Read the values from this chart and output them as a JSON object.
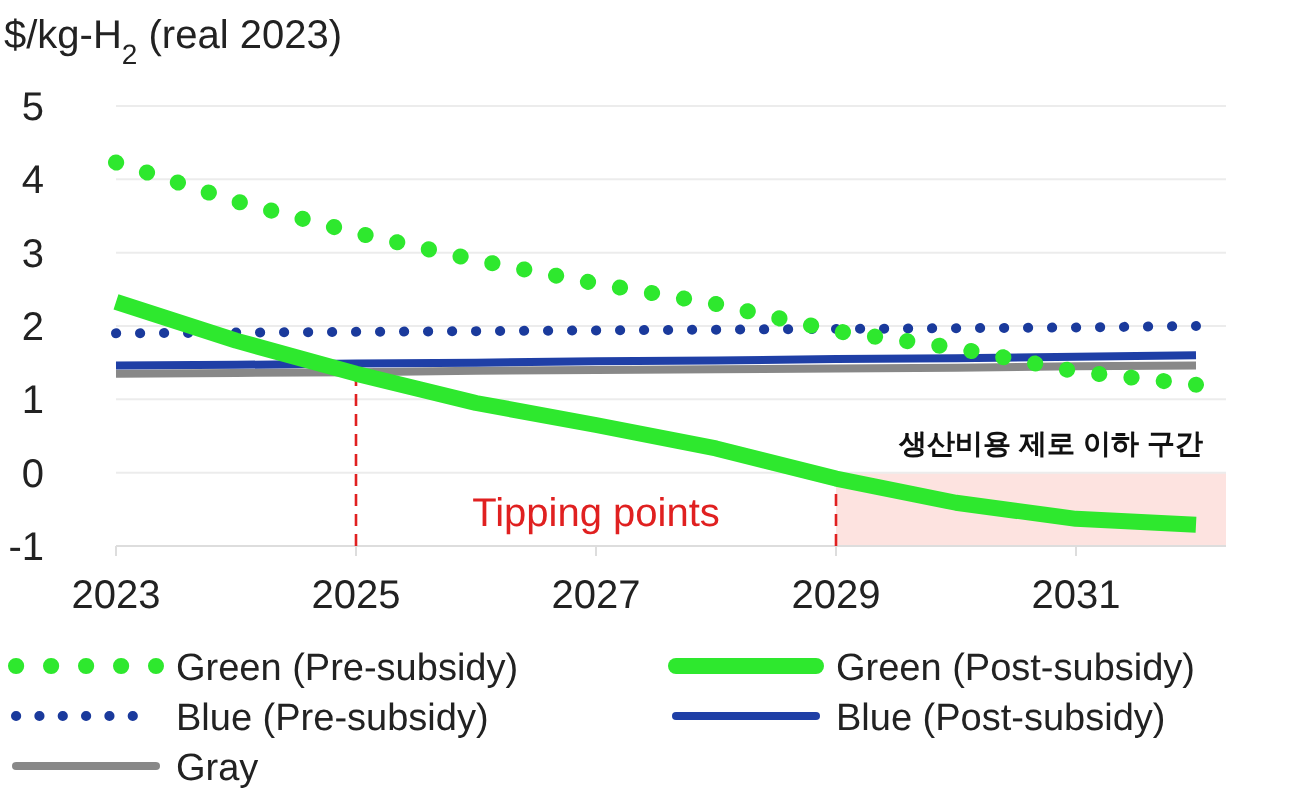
{
  "chart_data": {
    "type": "line",
    "ylabel": "$/kg-H$_{2}$ (real 2023)",
    "x": [
      2023,
      2024,
      2025,
      2026,
      2027,
      2028,
      2029,
      2030,
      2031,
      2032
    ],
    "series": [
      {
        "name": "Green (Pre-subsidy)",
        "color": "#2ee82e",
        "line_style": "dotted",
        "values": [
          4.23,
          3.7,
          3.27,
          2.9,
          2.58,
          2.3,
          1.93,
          1.7,
          1.38,
          1.2
        ]
      },
      {
        "name": "Green (Post-subsidy)",
        "color": "#2ee82e",
        "line_style": "solid",
        "values": [
          2.33,
          1.8,
          1.35,
          0.95,
          0.65,
          0.33,
          -0.08,
          -0.41,
          -0.63,
          -0.71
        ]
      },
      {
        "name": "Blue (Pre-subsidy)",
        "color": "#1a3a9c",
        "line_style": "dotted",
        "values": [
          1.9,
          1.91,
          1.92,
          1.93,
          1.94,
          1.95,
          1.96,
          1.97,
          1.98,
          2.0
        ]
      },
      {
        "name": "Blue (Post-subsidy)",
        "color": "#1f3fa6",
        "line_style": "solid",
        "values": [
          1.46,
          1.47,
          1.49,
          1.5,
          1.52,
          1.53,
          1.55,
          1.56,
          1.58,
          1.6
        ]
      },
      {
        "name": "Gray",
        "color": "#888888",
        "line_style": "solid",
        "values": [
          1.35,
          1.36,
          1.37,
          1.39,
          1.4,
          1.41,
          1.42,
          1.43,
          1.45,
          1.46
        ]
      }
    ],
    "xlim": [
      2023,
      2032.25
    ],
    "ylim": [
      -1,
      5
    ],
    "xticks": [
      2023,
      2025,
      2027,
      2029,
      2031
    ],
    "yticks": [
      -1,
      0,
      1,
      2,
      3,
      4,
      5
    ],
    "grid": "y",
    "legend": "bottom",
    "ref_lines": [
      {
        "axis": "x",
        "value": 2025,
        "color": "#e02020",
        "line_style": "dashed"
      },
      {
        "axis": "x",
        "value": 2029,
        "color": "#e02020",
        "line_style": "dashed"
      }
    ],
    "bands": [
      {
        "axis": "x",
        "from": 2029,
        "to": 2032.25,
        "label": "생산비용 제로 이하 구간",
        "color": "#fde3e0"
      }
    ],
    "annotations": [
      "Tipping points"
    ]
  }
}
